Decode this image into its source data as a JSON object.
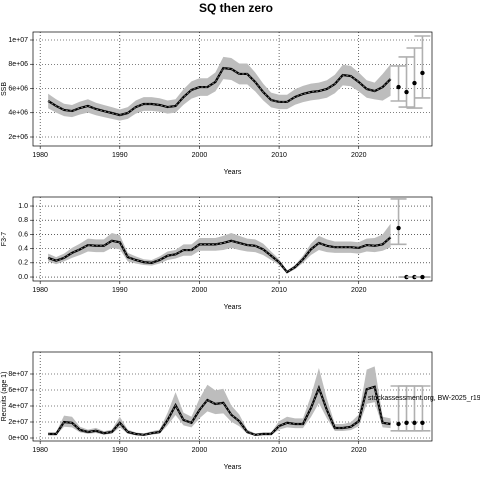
{
  "title": "SQ then zero",
  "chart_data": [
    {
      "type": "line",
      "ylabel": "SSB",
      "xlabel": "Years",
      "x": [
        1981,
        1982,
        1983,
        1984,
        1985,
        1986,
        1987,
        1988,
        1989,
        1990,
        1991,
        1992,
        1993,
        1994,
        1995,
        1996,
        1997,
        1998,
        1999,
        2000,
        2001,
        2002,
        2003,
        2004,
        2005,
        2006,
        2007,
        2008,
        2009,
        2010,
        2011,
        2012,
        2013,
        2014,
        2015,
        2016,
        2017,
        2018,
        2019,
        2020,
        2021,
        2022,
        2023,
        2024
      ],
      "series": [
        {
          "color": "#000000",
          "values": [
            4970000.0,
            4560000.0,
            4230000.0,
            4140000.0,
            4390000.0,
            4560000.0,
            4310000.0,
            4140000.0,
            3980000.0,
            3810000.0,
            3980000.0,
            4470000.0,
            4720000.0,
            4720000.0,
            4640000.0,
            4470000.0,
            4560000.0,
            5300000.0,
            5880000.0,
            6120000.0,
            6120000.0,
            6540000.0,
            7690000.0,
            7610000.0,
            7200000.0,
            7200000.0,
            6540000.0,
            5710000.0,
            5050000.0,
            4890000.0,
            4890000.0,
            5300000.0,
            5550000.0,
            5710000.0,
            5790000.0,
            5960000.0,
            6370000.0,
            7110000.0,
            7030000.0,
            6540000.0,
            5960000.0,
            5790000.0,
            6120000.0,
            6780000.0
          ]
        }
      ],
      "band": {
        "color": "#bdbdbd",
        "lower": [
          4370000.0,
          4010000.0,
          3720000.0,
          3640000.0,
          3860000.0,
          4010000.0,
          3790000.0,
          3640000.0,
          3500000.0,
          3350000.0,
          3500000.0,
          3930000.0,
          4150000.0,
          4150000.0,
          4080000.0,
          3930000.0,
          4010000.0,
          4660000.0,
          5170000.0,
          5390000.0,
          5390000.0,
          5760000.0,
          6770000.0,
          6700000.0,
          6340000.0,
          6340000.0,
          5760000.0,
          5020000.0,
          4440000.0,
          4300000.0,
          4300000.0,
          4660000.0,
          4880000.0,
          5020000.0,
          5100000.0,
          5240000.0,
          5610000.0,
          6260000.0,
          6190000.0,
          5760000.0,
          5240000.0,
          5100000.0,
          5000000.0,
          5400000.0
        ],
        "upper": [
          5570000.0,
          5110000.0,
          4740000.0,
          4640000.0,
          4920000.0,
          5110000.0,
          4830000.0,
          4640000.0,
          4460000.0,
          4270000.0,
          4460000.0,
          5010000.0,
          5290000.0,
          5290000.0,
          5200000.0,
          5010000.0,
          5110000.0,
          5940000.0,
          6590000.0,
          6850000.0,
          6850000.0,
          7320000.0,
          8610000.0,
          8520000.0,
          8060000.0,
          8060000.0,
          7320000.0,
          6400000.0,
          5660000.0,
          5480000.0,
          5480000.0,
          5940000.0,
          6220000.0,
          6400000.0,
          6480000.0,
          6680000.0,
          7130000.0,
          7960000.0,
          7870000.0,
          7320000.0,
          6680000.0,
          6480000.0,
          7200000.0,
          8000000.0
        ]
      },
      "projection": {
        "color": "#000000",
        "bar_color": "#b0b0b0",
        "x": [
          2025,
          2026,
          2027,
          2028
        ],
        "values": [
          6120000.0,
          5710000.0,
          6450000.0,
          7280000.0
        ],
        "lower": [
          4970000.0,
          4470000.0,
          4390000.0,
          5220000.0
        ],
        "upper": [
          7860000.0,
          8600000.0,
          9340000.0,
          10330000.0
        ]
      },
      "xlim": [
        1979.1,
        2029.2
      ],
      "xticks": [
        1980,
        1990,
        2000,
        2010,
        2020
      ],
      "ylim": [
        1258000.0,
        10660000.0
      ],
      "yticks": [
        {
          "value": 2000000.0,
          "label": "2e+06"
        },
        {
          "value": 4000000.0,
          "label": "4e+06"
        },
        {
          "value": 6000000.0,
          "label": "6e+06"
        },
        {
          "value": 8000000.0,
          "label": "8e+06"
        },
        {
          "value": 10000000.0,
          "label": "1e+07"
        }
      ],
      "grid": true
    },
    {
      "type": "line",
      "ylabel": "F3-7",
      "xlabel": "Years",
      "x": [
        1981,
        1982,
        1983,
        1984,
        1985,
        1986,
        1987,
        1988,
        1989,
        1990,
        1991,
        1992,
        1993,
        1994,
        1995,
        1996,
        1997,
        1998,
        1999,
        2000,
        2001,
        2002,
        2003,
        2004,
        2005,
        2006,
        2007,
        2008,
        2009,
        2010,
        2011,
        2012,
        2013,
        2014,
        2015,
        2016,
        2017,
        2018,
        2019,
        2020,
        2021,
        2022,
        2023,
        2024
      ],
      "series": [
        {
          "color": "#000000",
          "values": [
            0.27,
            0.23,
            0.27,
            0.34,
            0.39,
            0.45,
            0.44,
            0.44,
            0.51,
            0.49,
            0.28,
            0.24,
            0.21,
            0.2,
            0.24,
            0.3,
            0.32,
            0.38,
            0.38,
            0.46,
            0.46,
            0.46,
            0.48,
            0.51,
            0.48,
            0.45,
            0.44,
            0.39,
            0.3,
            0.21,
            0.07,
            0.14,
            0.25,
            0.39,
            0.48,
            0.44,
            0.42,
            0.42,
            0.42,
            0.41,
            0.45,
            0.44,
            0.46,
            0.56
          ]
        }
      ],
      "band": {
        "color": "#bdbdbd",
        "lower": [
          0.22,
          0.18,
          0.22,
          0.27,
          0.31,
          0.36,
          0.35,
          0.35,
          0.41,
          0.39,
          0.22,
          0.19,
          0.17,
          0.16,
          0.19,
          0.24,
          0.26,
          0.3,
          0.3,
          0.37,
          0.37,
          0.37,
          0.38,
          0.41,
          0.38,
          0.36,
          0.35,
          0.31,
          0.24,
          0.17,
          0.05,
          0.11,
          0.2,
          0.31,
          0.38,
          0.35,
          0.34,
          0.34,
          0.34,
          0.33,
          0.36,
          0.35,
          0.37,
          0.42
        ],
        "upper": [
          0.33,
          0.28,
          0.33,
          0.41,
          0.47,
          0.54,
          0.53,
          0.53,
          0.62,
          0.59,
          0.34,
          0.29,
          0.25,
          0.24,
          0.29,
          0.36,
          0.38,
          0.46,
          0.46,
          0.55,
          0.55,
          0.55,
          0.58,
          0.62,
          0.58,
          0.54,
          0.53,
          0.47,
          0.36,
          0.25,
          0.09,
          0.17,
          0.3,
          0.47,
          0.58,
          0.53,
          0.5,
          0.5,
          0.5,
          0.49,
          0.54,
          0.55,
          0.6,
          0.75
        ]
      },
      "projection": {
        "color": "#000000",
        "bar_color": "#b0b0b0",
        "x": [
          2025,
          2026,
          2027,
          2028
        ],
        "values": [
          0.69,
          0,
          0,
          0
        ],
        "lower": [
          0.46,
          0,
          0,
          0
        ],
        "upper": [
          1.1,
          0,
          0,
          0
        ]
      },
      "xlim": [
        1979.1,
        2029.2
      ],
      "xticks": [
        1980,
        1990,
        2000,
        2010,
        2020
      ],
      "ylim": [
        -0.056,
        1.127
      ],
      "yticks": [
        {
          "value": 0,
          "label": "0.0"
        },
        0.2,
        0.4,
        0.6,
        0.8,
        {
          "value": 1,
          "label": "1.0"
        }
      ],
      "grid": true
    },
    {
      "type": "line",
      "ylabel": "Recruits (age 1)",
      "xlabel": "Years",
      "annotation": "stockassessment.org, BW-2025_r19311_gilt1c",
      "x": [
        1981,
        1982,
        1983,
        1984,
        1985,
        1986,
        1987,
        1988,
        1989,
        1990,
        1991,
        1992,
        1993,
        1994,
        1995,
        1996,
        1997,
        1998,
        1999,
        2000,
        2001,
        2002,
        2003,
        2004,
        2005,
        2006,
        2007,
        2008,
        2009,
        2010,
        2011,
        2012,
        2013,
        2014,
        2015,
        2016,
        2017,
        2018,
        2019,
        2020,
        2021,
        2022,
        2023,
        2024
      ],
      "series": [
        {
          "color": "#000000",
          "values": [
            5000000.0,
            5000000.0,
            20000000.0,
            19000000.0,
            10000000.0,
            7500000.0,
            9000000.0,
            6000000.0,
            7500000.0,
            19000000.0,
            7500000.0,
            5000000.0,
            4000000.0,
            6000000.0,
            7500000.0,
            22500000.0,
            41000000.0,
            22500000.0,
            19000000.0,
            35000000.0,
            47500000.0,
            42500000.0,
            44000000.0,
            29000000.0,
            21000000.0,
            7500000.0,
            4000000.0,
            5000000.0,
            5000000.0,
            15000000.0,
            19000000.0,
            17500000.0,
            17500000.0,
            37500000.0,
            62500000.0,
            35000000.0,
            12500000.0,
            12500000.0,
            14000000.0,
            21000000.0,
            61000000.0,
            64000000.0,
            19000000.0,
            17500000.0
          ]
        }
      ],
      "band": {
        "color": "#bdbdbd",
        "lower": [
          3500000.0,
          3500000.0,
          14000000.0,
          13300000.0,
          7000000.0,
          5300000.0,
          6300000.0,
          4200000.0,
          5300000.0,
          13300000.0,
          5300000.0,
          3500000.0,
          2800000.0,
          4200000.0,
          5300000.0,
          15800000.0,
          28700000.0,
          15800000.0,
          13300000.0,
          24500000.0,
          33300000.0,
          29800000.0,
          30800000.0,
          20300000.0,
          14700000.0,
          5300000.0,
          2800000.0,
          3500000.0,
          3500000.0,
          10500000.0,
          13300000.0,
          12300000.0,
          12300000.0,
          26300000.0,
          43800000.0,
          24500000.0,
          8800000.0,
          8800000.0,
          9800000.0,
          14700000.0,
          42700000.0,
          44800000.0,
          13300000.0,
          12300000.0
        ],
        "upper": [
          7000000.0,
          7000000.0,
          28000000.0,
          26600000.0,
          14000000.0,
          10500000.0,
          12600000.0,
          8400000.0,
          10500000.0,
          26600000.0,
          10500000.0,
          7000000.0,
          5600000.0,
          8400000.0,
          10500000.0,
          31500000.0,
          57400000.0,
          31500000.0,
          26600000.0,
          49000000.0,
          66500000.0,
          59500000.0,
          61600000.0,
          40600000.0,
          29400000.0,
          10500000.0,
          5600000.0,
          7000000.0,
          7000000.0,
          21000000.0,
          26600000.0,
          24500000.0,
          24500000.0,
          52500000.0,
          87500000.0,
          49000000.0,
          17500000.0,
          17500000.0,
          19600000.0,
          29400000.0,
          85400000.0,
          89600000.0,
          26600000.0,
          24500000.0
        ]
      },
      "projection": {
        "color": "#000000",
        "bar_color": "#b0b0b0",
        "x": [
          2025,
          2026,
          2027,
          2028
        ],
        "values": [
          17500000.0,
          19000000.0,
          19000000.0,
          19000000.0
        ],
        "lower": [
          9000000.0,
          9000000.0,
          9000000.0,
          9000000.0
        ],
        "upper": [
          65000000.0,
          65000000.0,
          65000000.0,
          65000000.0
        ]
      },
      "xlim": [
        1979.1,
        2029.2
      ],
      "xticks": [
        1980,
        1990,
        2000,
        2010,
        2020
      ],
      "ylim": [
        -3750000.0,
        107500000.0
      ],
      "yticks": [
        {
          "value": 0,
          "label": "0e+00"
        },
        {
          "value": 20000000.0,
          "label": "2e+07"
        },
        {
          "value": 40000000.0,
          "label": "4e+07"
        },
        {
          "value": 60000000.0,
          "label": "6e+07"
        },
        {
          "value": 80000000.0,
          "label": "8e+07"
        }
      ],
      "grid": true
    }
  ]
}
